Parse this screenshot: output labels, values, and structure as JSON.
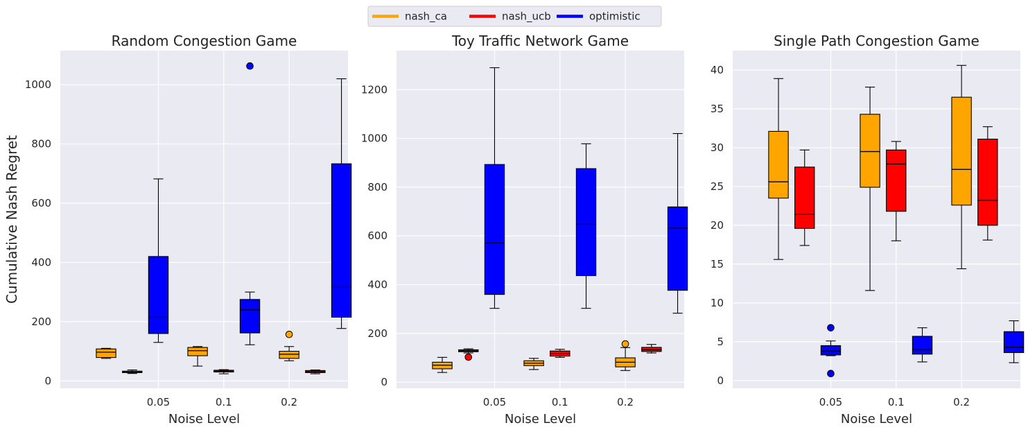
{
  "legend": {
    "placement": "top-center",
    "entries": [
      {
        "name": "nash_ca",
        "color": "#FFA500"
      },
      {
        "name": "nash_ucb",
        "color": "#FF0000"
      },
      {
        "name": "optimistic",
        "color": "#0000FF"
      }
    ]
  },
  "shared": {
    "ylabel": "Cumulative Nash Regret",
    "xlabel": "Noise Level",
    "categories": [
      "0.05",
      "0.1",
      "0.2"
    ]
  },
  "chart_data": [
    {
      "type": "boxplot",
      "title": "Random Congestion Game",
      "xlabel": "Noise Level",
      "ylabel": "Cumulative Nash Regret",
      "xlim": [
        -0.5,
        3.9
      ],
      "ylim": [
        -25,
        1115
      ],
      "yticks": [
        0,
        200,
        400,
        600,
        800,
        1000
      ],
      "xticks": [
        1,
        2,
        3
      ],
      "xticklabels": [
        "0.05",
        "0.1",
        "0.2"
      ],
      "grid": true,
      "boxes": [
        {
          "series": "nash_ca",
          "pos": 0.2,
          "whislo": 76,
          "q1": 79,
          "med": 97,
          "q3": 108,
          "whishi": 110,
          "fliers": []
        },
        {
          "series": "nash_ucb",
          "pos": 0.6,
          "whislo": 25,
          "q1": 28,
          "med": 30,
          "q3": 33,
          "whishi": 37,
          "fliers": []
        },
        {
          "series": "optimistic",
          "pos": 1.0,
          "whislo": 130,
          "q1": 160,
          "med": 215,
          "q3": 420,
          "whishi": 682,
          "fliers": []
        },
        {
          "series": "nash_ca",
          "pos": 1.6,
          "whislo": 50,
          "q1": 85,
          "med": 102,
          "q3": 113,
          "whishi": 116,
          "fliers": []
        },
        {
          "series": "nash_ucb",
          "pos": 2.0,
          "whislo": 24,
          "q1": 30,
          "med": 33,
          "q3": 36,
          "whishi": 38,
          "fliers": []
        },
        {
          "series": "optimistic",
          "pos": 2.4,
          "whislo": 122,
          "q1": 162,
          "med": 240,
          "q3": 275,
          "whishi": 300,
          "fliers": [
            1063
          ]
        },
        {
          "series": "nash_ca",
          "pos": 3.0,
          "whislo": 68,
          "q1": 76,
          "med": 90,
          "q3": 100,
          "whishi": 116,
          "fliers": [
            157
          ]
        },
        {
          "series": "nash_ucb",
          "pos": 3.4,
          "whislo": 24,
          "q1": 28,
          "med": 31,
          "q3": 35,
          "whishi": 37,
          "fliers": []
        },
        {
          "series": "optimistic",
          "pos": 3.8,
          "whislo": 177,
          "q1": 215,
          "med": 318,
          "q3": 733,
          "whishi": 1020,
          "fliers": []
        }
      ]
    },
    {
      "type": "boxplot",
      "title": "Toy Traffic Network Game",
      "xlabel": "Noise Level",
      "ylabel": "",
      "xlim": [
        -0.5,
        3.9
      ],
      "ylim": [
        -25,
        1360
      ],
      "yticks": [
        0,
        200,
        400,
        600,
        800,
        1000,
        1200
      ],
      "xticks": [
        1,
        2,
        3
      ],
      "xticklabels": [
        "0.05",
        "0.1",
        "0.2"
      ],
      "grid": true,
      "boxes": [
        {
          "series": "nash_ca",
          "pos": 0.2,
          "whislo": 40,
          "q1": 55,
          "med": 70,
          "q3": 82,
          "whishi": 102,
          "fliers": []
        },
        {
          "series": "nash_ucb",
          "pos": 0.6,
          "whislo": 120,
          "q1": 125,
          "med": 128,
          "q3": 133,
          "whishi": 137,
          "fliers": [
            103
          ]
        },
        {
          "series": "optimistic",
          "pos": 1.0,
          "whislo": 303,
          "q1": 360,
          "med": 572,
          "q3": 893,
          "whishi": 1290,
          "fliers": []
        },
        {
          "series": "nash_ca",
          "pos": 1.6,
          "whislo": 52,
          "q1": 68,
          "med": 78,
          "q3": 88,
          "whishi": 98,
          "fliers": []
        },
        {
          "series": "nash_ucb",
          "pos": 2.0,
          "whislo": 102,
          "q1": 107,
          "med": 118,
          "q3": 128,
          "whishi": 135,
          "fliers": []
        },
        {
          "series": "optimistic",
          "pos": 2.4,
          "whislo": 303,
          "q1": 437,
          "med": 648,
          "q3": 876,
          "whishi": 978,
          "fliers": []
        },
        {
          "series": "nash_ca",
          "pos": 3.0,
          "whislo": 48,
          "q1": 63,
          "med": 82,
          "q3": 100,
          "whishi": 142,
          "fliers": [
            157
          ]
        },
        {
          "series": "nash_ucb",
          "pos": 3.4,
          "whislo": 120,
          "q1": 126,
          "med": 133,
          "q3": 143,
          "whishi": 155,
          "fliers": []
        },
        {
          "series": "optimistic",
          "pos": 3.8,
          "whislo": 283,
          "q1": 377,
          "med": 632,
          "q3": 719,
          "whishi": 1020,
          "fliers": []
        }
      ]
    },
    {
      "type": "boxplot",
      "title": "Single Path Congestion Game",
      "xlabel": "Noise Level",
      "ylabel": "",
      "xlim": [
        -0.5,
        3.9
      ],
      "ylim": [
        -1,
        42.5
      ],
      "yticks": [
        0,
        5,
        10,
        15,
        20,
        25,
        30,
        35,
        40
      ],
      "xticks": [
        1,
        2,
        3
      ],
      "xticklabels": [
        "0.05",
        "0.1",
        "0.2"
      ],
      "grid": true,
      "boxes": [
        {
          "series": "nash_ca",
          "pos": 0.2,
          "whislo": 15.6,
          "q1": 23.5,
          "med": 25.6,
          "q3": 32.1,
          "whishi": 38.9,
          "fliers": []
        },
        {
          "series": "nash_ucb",
          "pos": 0.6,
          "whislo": 17.4,
          "q1": 19.6,
          "med": 21.4,
          "q3": 27.5,
          "whishi": 29.7,
          "fliers": []
        },
        {
          "series": "optimistic",
          "pos": 1.0,
          "whislo": 3.2,
          "q1": 3.3,
          "med": 3.8,
          "q3": 4.5,
          "whishi": 5.1,
          "fliers": [
            6.8,
            0.9
          ]
        },
        {
          "series": "nash_ca",
          "pos": 1.6,
          "whislo": 11.6,
          "q1": 24.9,
          "med": 29.5,
          "q3": 34.3,
          "whishi": 37.8,
          "fliers": []
        },
        {
          "series": "nash_ucb",
          "pos": 2.0,
          "whislo": 18.0,
          "q1": 21.8,
          "med": 27.9,
          "q3": 29.7,
          "whishi": 30.8,
          "fliers": []
        },
        {
          "series": "optimistic",
          "pos": 2.4,
          "whislo": 2.4,
          "q1": 3.4,
          "med": 4.0,
          "q3": 5.7,
          "whishi": 6.8,
          "fliers": []
        },
        {
          "series": "nash_ca",
          "pos": 3.0,
          "whislo": 14.4,
          "q1": 22.6,
          "med": 27.2,
          "q3": 36.5,
          "whishi": 40.6,
          "fliers": []
        },
        {
          "series": "nash_ucb",
          "pos": 3.4,
          "whislo": 18.1,
          "q1": 20.0,
          "med": 23.2,
          "q3": 31.1,
          "whishi": 32.7,
          "fliers": []
        },
        {
          "series": "optimistic",
          "pos": 3.8,
          "whislo": 2.3,
          "q1": 3.6,
          "med": 4.3,
          "q3": 6.3,
          "whishi": 7.7,
          "fliers": []
        }
      ]
    }
  ]
}
